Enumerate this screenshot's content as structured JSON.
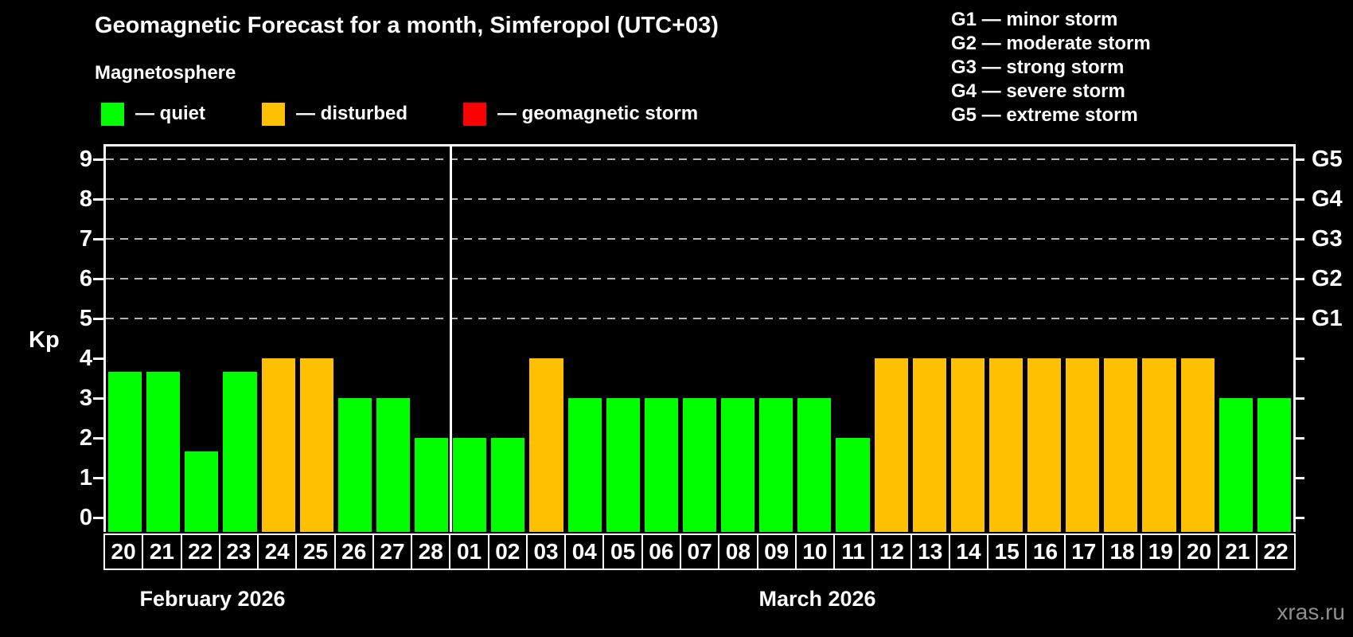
{
  "header": {
    "title": "Geomagnetic Forecast for a month, Simferopol (UTC+03)",
    "subtitle": "Magnetosphere",
    "legend": [
      {
        "label": "— quiet",
        "status": "quiet",
        "color": "#00ff00"
      },
      {
        "label": "— disturbed",
        "status": "disturbed",
        "color": "#ffc000"
      },
      {
        "label": "— geomagnetic storm",
        "status": "storm",
        "color": "#ff0000"
      }
    ],
    "g_scale_legend": [
      "G1 — minor storm",
      "G2 — moderate storm",
      "G3 — strong storm",
      "G4 — severe storm",
      "G5 — extreme storm"
    ]
  },
  "chart_data": {
    "type": "bar",
    "title": "Geomagnetic Forecast for a month, Simferopol (UTC+03)",
    "ylabel": "Kp",
    "ylim": [
      0,
      9.4
    ],
    "yticks": [
      0,
      1,
      2,
      3,
      4,
      5,
      6,
      7,
      8,
      9
    ],
    "gridlines_kp": [
      5,
      6,
      7,
      8,
      9
    ],
    "grid": true,
    "legend_position": "top",
    "right_axis": [
      {
        "label": "G1",
        "kp": 5
      },
      {
        "label": "G2",
        "kp": 6
      },
      {
        "label": "G3",
        "kp": 7
      },
      {
        "label": "G4",
        "kp": 8
      },
      {
        "label": "G5",
        "kp": 9
      }
    ],
    "status_colors": {
      "quiet": "#00ff00",
      "disturbed": "#ffc000",
      "storm": "#ff0000"
    },
    "months": [
      {
        "label": "February 2026",
        "days": [
          {
            "day": "20",
            "kp": 3.67,
            "status": "quiet"
          },
          {
            "day": "21",
            "kp": 3.67,
            "status": "quiet"
          },
          {
            "day": "22",
            "kp": 1.67,
            "status": "quiet"
          },
          {
            "day": "23",
            "kp": 3.67,
            "status": "quiet"
          },
          {
            "day": "24",
            "kp": 4,
            "status": "disturbed"
          },
          {
            "day": "25",
            "kp": 4,
            "status": "disturbed"
          },
          {
            "day": "26",
            "kp": 3,
            "status": "quiet"
          },
          {
            "day": "27",
            "kp": 3,
            "status": "quiet"
          },
          {
            "day": "28",
            "kp": 2,
            "status": "quiet"
          }
        ]
      },
      {
        "label": "March 2026",
        "days": [
          {
            "day": "01",
            "kp": 2,
            "status": "quiet"
          },
          {
            "day": "02",
            "kp": 2,
            "status": "quiet"
          },
          {
            "day": "03",
            "kp": 4,
            "status": "disturbed"
          },
          {
            "day": "04",
            "kp": 3,
            "status": "quiet"
          },
          {
            "day": "05",
            "kp": 3,
            "status": "quiet"
          },
          {
            "day": "06",
            "kp": 3,
            "status": "quiet"
          },
          {
            "day": "07",
            "kp": 3,
            "status": "quiet"
          },
          {
            "day": "08",
            "kp": 3,
            "status": "quiet"
          },
          {
            "day": "09",
            "kp": 3,
            "status": "quiet"
          },
          {
            "day": "10",
            "kp": 3,
            "status": "quiet"
          },
          {
            "day": "11",
            "kp": 2,
            "status": "quiet"
          },
          {
            "day": "12",
            "kp": 4,
            "status": "disturbed"
          },
          {
            "day": "13",
            "kp": 4,
            "status": "disturbed"
          },
          {
            "day": "14",
            "kp": 4,
            "status": "disturbed"
          },
          {
            "day": "15",
            "kp": 4,
            "status": "disturbed"
          },
          {
            "day": "16",
            "kp": 4,
            "status": "disturbed"
          },
          {
            "day": "17",
            "kp": 4,
            "status": "disturbed"
          },
          {
            "day": "18",
            "kp": 4,
            "status": "disturbed"
          },
          {
            "day": "19",
            "kp": 4,
            "status": "disturbed"
          },
          {
            "day": "20",
            "kp": 4,
            "status": "disturbed"
          },
          {
            "day": "21",
            "kp": 3,
            "status": "quiet"
          },
          {
            "day": "22",
            "kp": 3,
            "status": "quiet"
          }
        ]
      }
    ]
  },
  "watermark": "xras.ru"
}
